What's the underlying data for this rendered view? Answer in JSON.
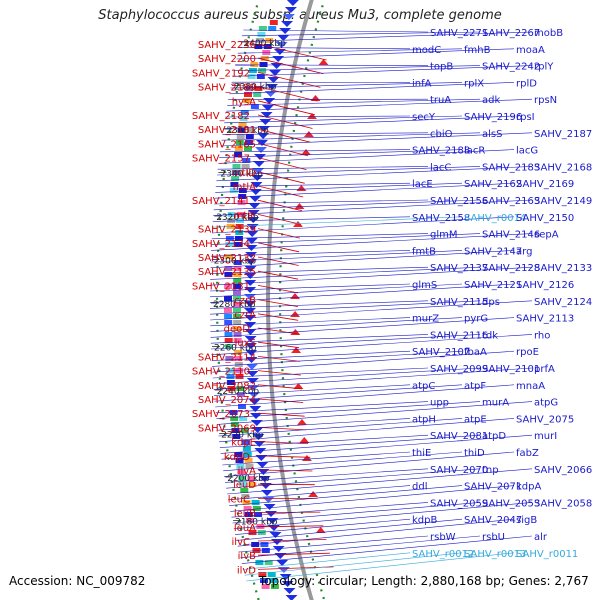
{
  "title": "Staphylococcus aureus subsp. aureus Mu3, complete genome",
  "footer": {
    "accession_label": "Accession:",
    "accession": "NC_009782",
    "topology_label": "Topology:",
    "topology": "circular",
    "length_label": "Length:",
    "length": "2,880,168 bp",
    "genes_label": "Genes:",
    "genes": "2,767"
  },
  "colors": {
    "reverse_label": "#d40000",
    "forward_label": "#1a1acc",
    "rna_label": "#33aadd",
    "backbone": "#999999",
    "gc_skew_dots": "#22882a"
  },
  "scale_ticks": [
    {
      "label": "2400 kbp"
    },
    {
      "label": "2380 kbp"
    },
    {
      "label": "2360 kbp"
    },
    {
      "label": "2340 kbp"
    },
    {
      "label": "2320 kbp"
    },
    {
      "label": "2300 kbp"
    },
    {
      "label": "2280 kbp"
    },
    {
      "label": "2260 kbp"
    },
    {
      "label": "2240 kbp"
    },
    {
      "label": "2220 kbp"
    },
    {
      "label": "2200 kbp"
    },
    {
      "label": "2180 kbp"
    }
  ],
  "left_labels": [
    "SAHV_2236",
    "SAHV_2200",
    "SAHV_2192",
    "SAHV_2189",
    "hysA",
    "SAHV_2182",
    "SAHV_2181",
    "SAHV_2165",
    "SAHV_2157",
    "mtlD",
    "mtlA",
    "SAHV_2141",
    "mtlF",
    "SAHV_2139",
    "SAHV_2134",
    "SAHV_2132",
    "SAHV_2135",
    "SAHV_2131",
    "czrB",
    "czrA",
    "deoD",
    "luxS",
    "SAHV_2114",
    "SAHV_2110",
    "SAHV_2082",
    "SAHV_2074",
    "SAHV_2073",
    "SAHV_2069",
    "kdpE",
    "kdpD",
    "ilvA",
    "leuD",
    "leuC",
    "leuB",
    "leuA",
    "ilvC",
    "ilvB",
    "ilvD"
  ],
  "right_labels": [
    "SAHV_2271",
    "SAHV_2267",
    "mobB",
    "modC",
    "fmhB",
    "moaA",
    "topB",
    "SAHV_2242",
    "rplY",
    "infA",
    "rplX",
    "rplD",
    "truA",
    "adk",
    "rpsN",
    "secY",
    "SAHV_2196",
    "rpsI",
    "cbiO",
    "alsS",
    "SAHV_2187",
    "SAHV_2188",
    "lacR",
    "lacG",
    "lacC",
    "SAHV_2183",
    "SAHV_2168",
    "lacE",
    "SAHV_2162",
    "SAHV_2169",
    "SAHV_2156",
    "SAHV_2163",
    "SAHV_2149",
    "SAHV_2158",
    "SAHV_r0014",
    "SAHV_2150",
    "glmM",
    "SAHV_2146",
    "sepA",
    "fmtB",
    "SAHV_2147",
    "arg",
    "SAHV_2137",
    "SAHV_2128",
    "SAHV_2133",
    "glmS",
    "SAHV_2121",
    "SAHV_2126",
    "SAHV_2115",
    "dps",
    "SAHV_2124",
    "murZ",
    "pyrG",
    "SAHV_2113",
    "SAHV_2116",
    "tdk",
    "rho",
    "SAHV_2107",
    "fbaA",
    "rpoE",
    "SAHV_2099",
    "SAHV_2101",
    "prfA",
    "atpC",
    "atpF",
    "mnaA",
    "upp",
    "murA",
    "atpG",
    "atpH",
    "atpE",
    "SAHV_2075",
    "SAHV_2081",
    "atpD",
    "murI",
    "thiE",
    "thiD",
    "fabZ",
    "SAHV_2070",
    "tnp",
    "SAHV_2066",
    "ddl",
    "SAHV_2071",
    "kdpA",
    "SAHV_2059",
    "SAHV_2053",
    "SAHV_2058",
    "kdpB",
    "SAHV_2047",
    "sigB",
    "rsbW",
    "rsbU",
    "alr",
    "SAHV_r0012",
    "SAHV_r0013",
    "SAHV_r0011"
  ]
}
